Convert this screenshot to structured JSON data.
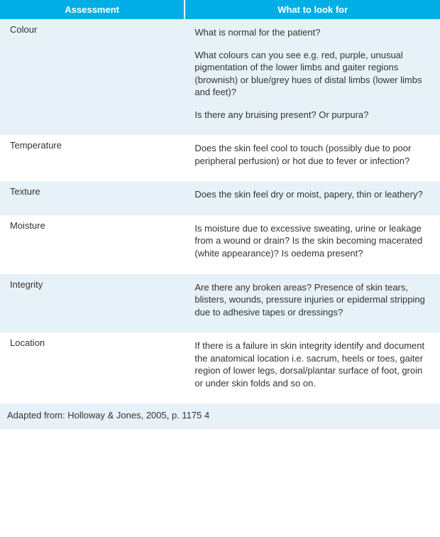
{
  "table": {
    "type": "table",
    "header_bg": "#00aee6",
    "header_fg": "#ffffff",
    "row_alt_bg": "#e6f2f7",
    "row_base_bg": "#ffffff",
    "text_color": "#333333",
    "font_family": "Arial",
    "font_size_pt": 10,
    "columns": [
      {
        "label": "Assessment",
        "width_pct": 42
      },
      {
        "label": "What to look for",
        "width_pct": 58
      }
    ],
    "rows": [
      {
        "assessment": "Colour",
        "look_for": [
          "What is normal for the patient?",
          "What colours can you see e.g. red, purple, unusual pigmentation of the lower limbs and gaiter regions (brownish) or blue/grey hues of distal limbs (lower limbs and feet)?",
          "Is there any bruising present? Or purpura?"
        ]
      },
      {
        "assessment": "Temperature",
        "look_for": [
          "Does the skin feel cool to touch (possibly due to poor peripheral perfusion) or hot due to fever or infection?"
        ]
      },
      {
        "assessment": "Texture",
        "look_for": [
          "Does the skin feel dry or moist, papery, thin or leathery?"
        ]
      },
      {
        "assessment": "Moisture",
        "look_for": [
          "Is moisture due to excessive sweating, urine or leakage from a wound or drain? Is the skin becoming macerated (white appearance)? Is oedema present?"
        ]
      },
      {
        "assessment": "Integrity",
        "look_for": [
          "Are there any broken areas? Presence of skin tears, blisters, wounds, pressure injuries or epidermal stripping due to adhesive tapes or dressings?"
        ]
      },
      {
        "assessment": "Location",
        "look_for": [
          "If there is a failure in skin integrity identify and document the anatomical location i.e. sacrum, heels or toes, gaiter region of lower legs, dorsal/plantar surface of foot, groin or under skin folds and so on."
        ]
      }
    ],
    "footer": "Adapted from: Holloway & Jones, 2005, p. 1175 4"
  }
}
